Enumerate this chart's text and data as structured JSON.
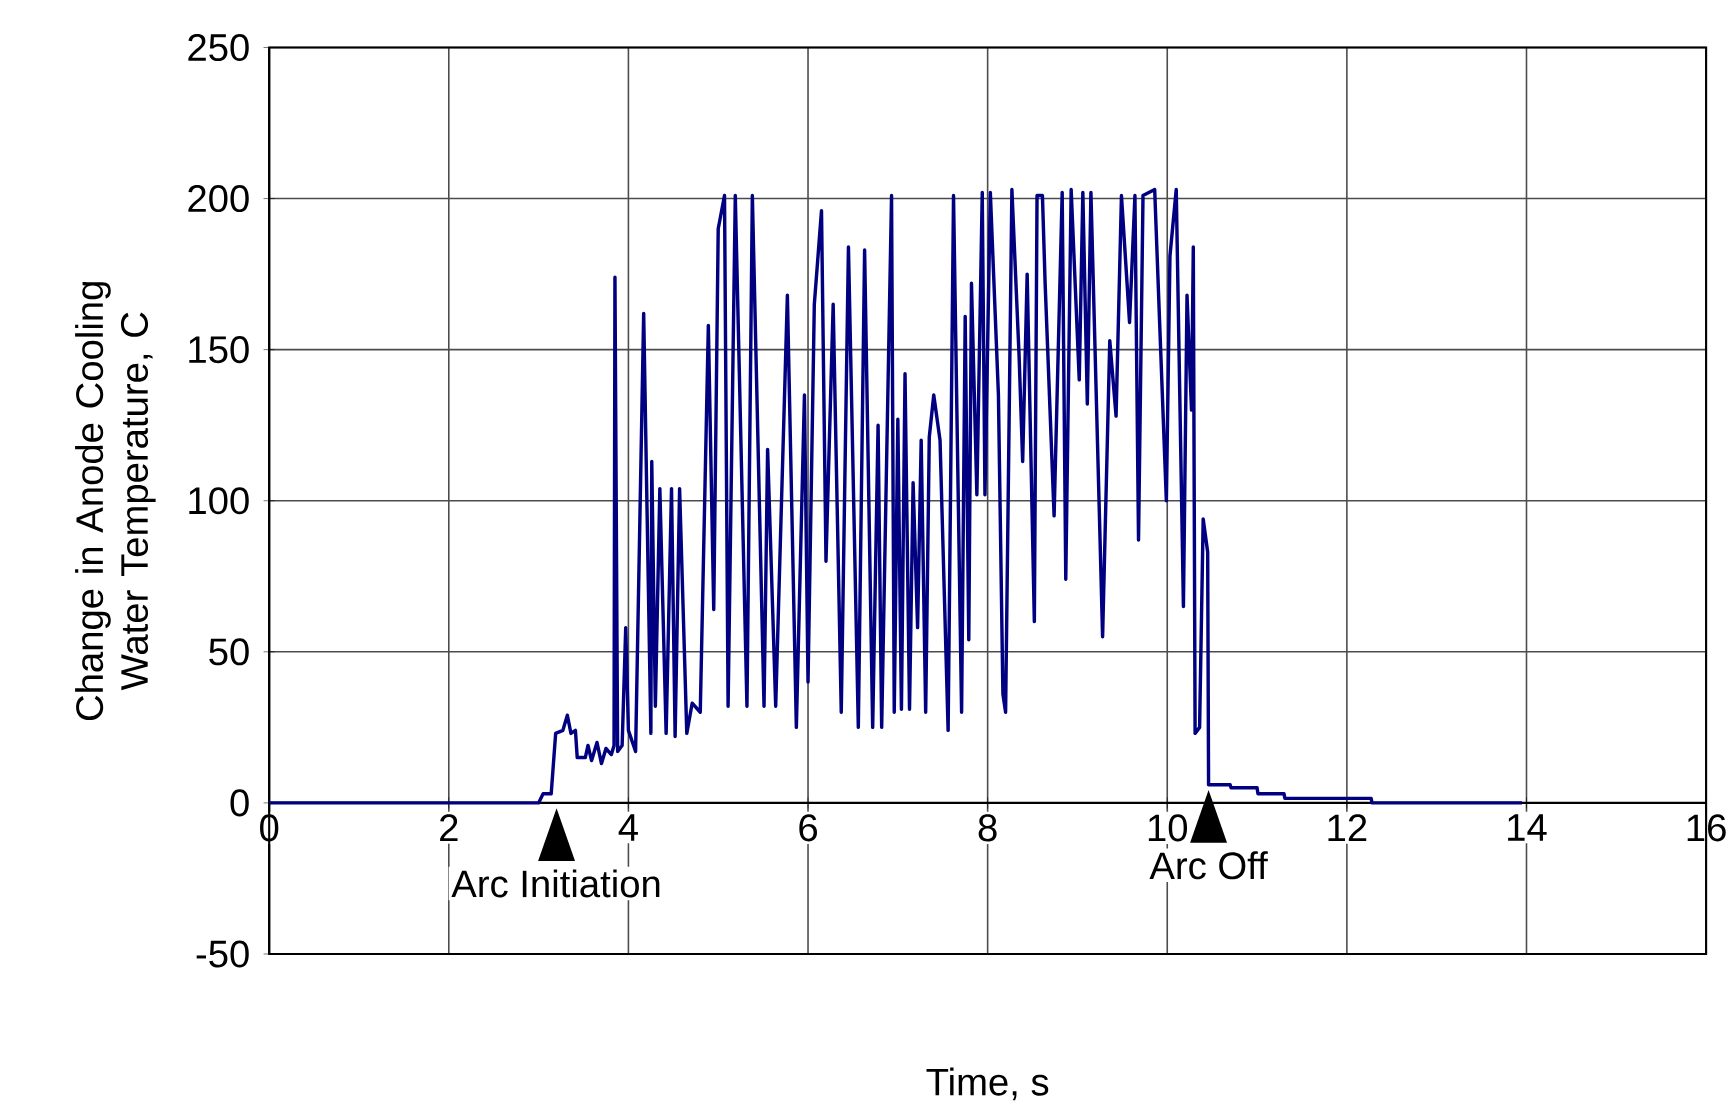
{
  "chart_data": {
    "type": "line",
    "xlabel": "Time, s",
    "ylabel": "Change in Anode Cooling Water Temperature, C",
    "xlim": [
      0,
      16
    ],
    "ylim": [
      -50,
      250
    ],
    "xticks": [
      0,
      2,
      4,
      6,
      8,
      10,
      12,
      14,
      16
    ],
    "yticks": [
      -50,
      0,
      50,
      100,
      150,
      200,
      250
    ],
    "grid": true,
    "annotations": [
      {
        "text": "Arc Initiation",
        "x": 3.2,
        "y": 0
      },
      {
        "text": "Arc Off",
        "x": 10.46,
        "y": 6
      }
    ],
    "series": [
      {
        "color": "#000080",
        "x": [
          0,
          3.0,
          3.05,
          3.14,
          3.19,
          3.27,
          3.32,
          3.36,
          3.41,
          3.43,
          3.52,
          3.55,
          3.59,
          3.65,
          3.7,
          3.75,
          3.81,
          3.84,
          3.85,
          3.88,
          3.93,
          3.97,
          4.0,
          4.08,
          4.17,
          4.25,
          4.26,
          4.3,
          4.35,
          4.42,
          4.48,
          4.52,
          4.57,
          4.65,
          4.71,
          4.8,
          4.89,
          4.95,
          5.0,
          5.07,
          5.11,
          5.19,
          5.32,
          5.38,
          5.51,
          5.55,
          5.64,
          5.77,
          5.87,
          5.96,
          6.0,
          6.07,
          6.15,
          6.2,
          6.28,
          6.37,
          6.45,
          6.56,
          6.63,
          6.72,
          6.78,
          6.82,
          6.93,
          6.96,
          7.0,
          7.04,
          7.08,
          7.13,
          7.17,
          7.22,
          7.26,
          7.31,
          7.35,
          7.4,
          7.47,
          7.56,
          7.62,
          7.71,
          7.75,
          7.79,
          7.82,
          7.88,
          7.94,
          7.97,
          8.03,
          8.12,
          8.17,
          8.2,
          8.27,
          8.35,
          8.39,
          8.44,
          8.52,
          8.55,
          8.61,
          8.64,
          8.74,
          8.83,
          8.87,
          8.93,
          9.02,
          9.06,
          9.11,
          9.15,
          9.28,
          9.36,
          9.43,
          9.49,
          9.58,
          9.64,
          9.68,
          9.73,
          9.86,
          9.91,
          9.99,
          10.03,
          10.1,
          10.18,
          10.22,
          10.27,
          10.29,
          10.31,
          10.36,
          10.4,
          10.45,
          10.46,
          10.7,
          10.71,
          11.0,
          11.01,
          11.3,
          11.31,
          12.27,
          12.28,
          13.95
        ],
        "values": [
          0,
          0,
          3,
          3,
          23,
          24,
          29,
          23,
          24,
          15,
          15,
          19,
          14,
          20,
          13,
          18,
          16,
          19,
          174,
          17,
          19,
          58,
          24,
          17,
          162,
          23,
          113,
          32,
          104,
          23,
          104,
          22,
          104,
          23,
          33,
          30,
          158,
          64,
          190,
          201,
          32,
          201,
          32,
          201,
          32,
          117,
          32,
          168,
          25,
          135,
          40,
          165,
          196,
          80,
          165,
          30,
          184,
          25,
          183,
          25,
          125,
          25,
          201,
          30,
          127,
          31,
          142,
          31,
          106,
          58,
          120,
          30,
          121,
          135,
          120,
          24,
          201,
          30,
          161,
          54,
          172,
          102,
          202,
          102,
          202,
          135,
          36,
          30,
          203,
          148,
          113,
          175,
          60,
          201,
          201,
          172,
          95,
          202,
          74,
          203,
          140,
          202,
          132,
          202,
          55,
          153,
          128,
          201,
          159,
          201,
          87,
          201,
          203,
          163,
          100,
          181,
          203,
          65,
          168,
          130,
          184,
          23,
          25,
          94,
          83,
          6,
          6,
          5,
          5,
          3,
          3,
          1.5,
          1.5,
          0,
          0
        ]
      }
    ]
  }
}
